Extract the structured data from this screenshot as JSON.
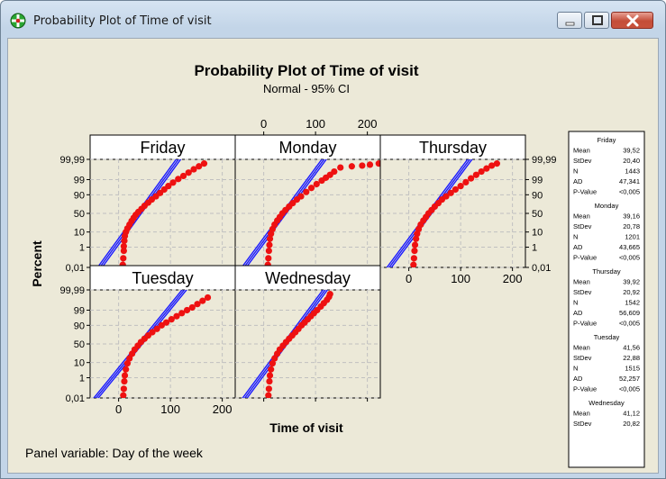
{
  "window": {
    "title": "Probability Plot of Time of visit",
    "controls": {
      "minimize": "minimize",
      "maximize": "maximize",
      "close": "close"
    }
  },
  "chart_data": {
    "type": "scatter",
    "title": "Probability Plot of Time of visit",
    "subtitle": "Normal - 95% CI",
    "xlabel": "Time of visit",
    "ylabel": "Percent",
    "panel_variable": "Panel variable: Day of the week",
    "xlim": [
      -55,
      225
    ],
    "x_ticks": [
      "0",
      "100",
      "200"
    ],
    "y_ticks": [
      "99,99",
      "99",
      "90",
      "50",
      "10",
      "1",
      "0,01"
    ],
    "y_tick_values": [
      99.99,
      99,
      90,
      50,
      10,
      1,
      0.01
    ],
    "grid": true,
    "panels": [
      {
        "name": "Friday",
        "mean": 39.52,
        "stdev": 20.4,
        "points": [
          [
            8,
            0.02
          ],
          [
            9,
            0.1
          ],
          [
            10,
            0.5
          ],
          [
            10,
            1.2
          ],
          [
            11,
            3
          ],
          [
            12,
            6
          ],
          [
            14,
            10
          ],
          [
            17,
            15
          ],
          [
            21,
            22
          ],
          [
            25,
            30
          ],
          [
            29,
            38
          ],
          [
            33,
            46
          ],
          [
            38,
            54
          ],
          [
            44,
            62
          ],
          [
            50,
            70
          ],
          [
            57,
            77
          ],
          [
            64,
            83
          ],
          [
            72,
            88
          ],
          [
            80,
            92
          ],
          [
            88,
            95
          ],
          [
            96,
            97
          ],
          [
            105,
            98.3
          ],
          [
            115,
            99.1
          ],
          [
            125,
            99.5
          ],
          [
            135,
            99.75
          ],
          [
            145,
            99.88
          ],
          [
            155,
            99.94
          ],
          [
            165,
            99.97
          ]
        ]
      },
      {
        "name": "Monday",
        "mean": 39.16,
        "stdev": 20.78,
        "points": [
          [
            8,
            0.02
          ],
          [
            9,
            0.1
          ],
          [
            10,
            0.5
          ],
          [
            11,
            1.5
          ],
          [
            12,
            4
          ],
          [
            14,
            8
          ],
          [
            17,
            14
          ],
          [
            21,
            22
          ],
          [
            26,
            31
          ],
          [
            31,
            40
          ],
          [
            36,
            50
          ],
          [
            42,
            59
          ],
          [
            49,
            68
          ],
          [
            56,
            76
          ],
          [
            64,
            83
          ],
          [
            72,
            88
          ],
          [
            82,
            93
          ],
          [
            92,
            96
          ],
          [
            102,
            97.8
          ],
          [
            112,
            98.8
          ],
          [
            120,
            99.3
          ],
          [
            128,
            99.6
          ],
          [
            136,
            99.8
          ],
          [
            148,
            99.92
          ],
          [
            170,
            99.94
          ],
          [
            190,
            99.95
          ],
          [
            205,
            99.96
          ],
          [
            222,
            99.97
          ]
        ]
      },
      {
        "name": "Thursday",
        "mean": 39.92,
        "stdev": 20.92,
        "points": [
          [
            9,
            0.02
          ],
          [
            10,
            0.1
          ],
          [
            11,
            0.5
          ],
          [
            12,
            1.5
          ],
          [
            14,
            4
          ],
          [
            16,
            8
          ],
          [
            19,
            14
          ],
          [
            23,
            22
          ],
          [
            28,
            31
          ],
          [
            33,
            40
          ],
          [
            38,
            50
          ],
          [
            44,
            59
          ],
          [
            50,
            68
          ],
          [
            57,
            76
          ],
          [
            64,
            83
          ],
          [
            72,
            88
          ],
          [
            81,
            92
          ],
          [
            90,
            95
          ],
          [
            100,
            97
          ],
          [
            110,
            98.4
          ],
          [
            120,
            99.2
          ],
          [
            130,
            99.6
          ],
          [
            140,
            99.8
          ],
          [
            150,
            99.9
          ],
          [
            160,
            99.95
          ],
          [
            170,
            99.97
          ]
        ]
      },
      {
        "name": "Tuesday",
        "mean": 41.56,
        "stdev": 22.88,
        "points": [
          [
            9,
            0.02
          ],
          [
            10,
            0.1
          ],
          [
            11,
            0.5
          ],
          [
            12,
            1.5
          ],
          [
            14,
            4
          ],
          [
            17,
            9
          ],
          [
            21,
            16
          ],
          [
            26,
            25
          ],
          [
            31,
            35
          ],
          [
            37,
            45
          ],
          [
            43,
            55
          ],
          [
            50,
            64
          ],
          [
            57,
            72
          ],
          [
            65,
            79
          ],
          [
            74,
            85
          ],
          [
            83,
            90
          ],
          [
            92,
            93
          ],
          [
            102,
            95.5
          ],
          [
            112,
            97.2
          ],
          [
            122,
            98.3
          ],
          [
            132,
            99
          ],
          [
            142,
            99.4
          ],
          [
            152,
            99.7
          ],
          [
            162,
            99.85
          ],
          [
            172,
            99.93
          ]
        ]
      },
      {
        "name": "Wednesday",
        "mean": 41.12,
        "stdev": 20.82,
        "points": [
          [
            9,
            0.02
          ],
          [
            10,
            0.1
          ],
          [
            11,
            0.5
          ],
          [
            12,
            1.5
          ],
          [
            14,
            4
          ],
          [
            17,
            9
          ],
          [
            21,
            16
          ],
          [
            26,
            25
          ],
          [
            31,
            35
          ],
          [
            37,
            45
          ],
          [
            43,
            55
          ],
          [
            49,
            64
          ],
          [
            55,
            72
          ],
          [
            61,
            79
          ],
          [
            67,
            85
          ],
          [
            73,
            90
          ],
          [
            79,
            93
          ],
          [
            85,
            95.5
          ],
          [
            91,
            97.2
          ],
          [
            97,
            98.3
          ],
          [
            103,
            99
          ],
          [
            110,
            99.5
          ],
          [
            116,
            99.75
          ],
          [
            122,
            99.88
          ],
          [
            126,
            99.94
          ],
          [
            128,
            99.97
          ]
        ]
      }
    ],
    "legend": [
      {
        "day": "Friday",
        "rows": [
          [
            "Mean",
            "39,52"
          ],
          [
            "StDev",
            "20,40"
          ],
          [
            "N",
            "1443"
          ],
          [
            "AD",
            "47,341"
          ],
          [
            "P-Value",
            "<0,005"
          ]
        ]
      },
      {
        "day": "Monday",
        "rows": [
          [
            "Mean",
            "39,16"
          ],
          [
            "StDev",
            "20,78"
          ],
          [
            "N",
            "1201"
          ],
          [
            "AD",
            "43,665"
          ],
          [
            "P-Value",
            "<0,005"
          ]
        ]
      },
      {
        "day": "Thursday",
        "rows": [
          [
            "Mean",
            "39,92"
          ],
          [
            "StDev",
            "20,92"
          ],
          [
            "N",
            "1542"
          ],
          [
            "AD",
            "56,609"
          ],
          [
            "P-Value",
            "<0,005"
          ]
        ]
      },
      {
        "day": "Tuesday",
        "rows": [
          [
            "Mean",
            "41,56"
          ],
          [
            "StDev",
            "22,88"
          ],
          [
            "N",
            "1515"
          ],
          [
            "AD",
            "52,257"
          ],
          [
            "P-Value",
            "<0,005"
          ]
        ]
      },
      {
        "day": "Wednesday",
        "rows": [
          [
            "Mean",
            "41,12"
          ],
          [
            "StDev",
            "20,82"
          ]
        ]
      }
    ],
    "colors": {
      "fit_line": "#1a1aff",
      "points": "#ee1111",
      "grid": "#c0c0c0",
      "background": "#ece9d8"
    }
  }
}
